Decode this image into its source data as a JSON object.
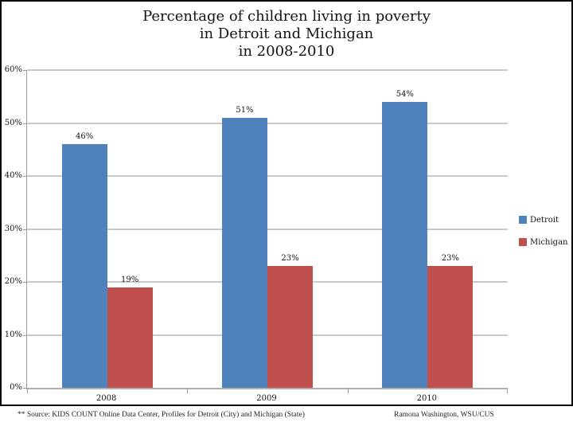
{
  "chart_data": {
    "type": "bar",
    "title": "Percentage of children living in poverty in Detroit and Michigan in 2008-2010",
    "title_lines": [
      "Percentage of children living in poverty",
      "in Detroit and Michigan",
      "in 2008-2010"
    ],
    "categories": [
      "2008",
      "2009",
      "2010"
    ],
    "series": [
      {
        "name": "Detroit",
        "color": "#4F81BD",
        "values": [
          46,
          51,
          54
        ],
        "labels": [
          "46%",
          "51%",
          "54%"
        ]
      },
      {
        "name": "Michigan",
        "color": "#C0504D",
        "values": [
          19,
          23,
          23
        ],
        "labels": [
          "19%",
          "23%",
          "23%"
        ]
      }
    ],
    "xlabel": "",
    "ylabel": "",
    "ylim": [
      0,
      60
    ],
    "ytick_step": 10,
    "ytick_labels": [
      "0%",
      "10%",
      "20%",
      "30%",
      "40%",
      "50%",
      "60%"
    ],
    "grid": true,
    "legend_position": "right",
    "gridline_color": "#c9c9c9",
    "axis_color": "#9a9a9a"
  },
  "footer": {
    "source": "** Source: KIDS COUNT Online Data Center, Profiles for Detroit (City) and Michigan (State)",
    "credit": "Ramona Washington, WSU/CUS"
  }
}
